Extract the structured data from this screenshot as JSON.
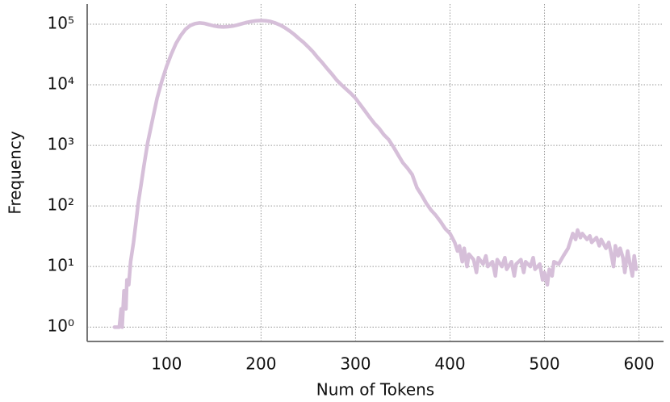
{
  "chart_data": {
    "type": "line",
    "xlabel": "Num of Tokens",
    "ylabel": "Frequency",
    "xlim": [
      16,
      626
    ],
    "ylim": [
      0.58,
      215000
    ],
    "log_y": true,
    "grid": true,
    "xticks": [
      100,
      200,
      300,
      400,
      500,
      600
    ],
    "yticks": [
      {
        "value": 1,
        "label": "10⁰"
      },
      {
        "value": 10,
        "label": "10¹"
      },
      {
        "value": 100,
        "label": "10²"
      },
      {
        "value": 1000,
        "label": "10³"
      },
      {
        "value": 10000,
        "label": "10⁴"
      },
      {
        "value": 100000,
        "label": "10⁵"
      }
    ],
    "series": [
      {
        "color": "#d6bfd9",
        "x": [
          45,
          48,
          50,
          52,
          53,
          55,
          57,
          58,
          60,
          62,
          65,
          68,
          70,
          73,
          76,
          80,
          85,
          90,
          95,
          100,
          105,
          110,
          115,
          120,
          125,
          130,
          135,
          140,
          145,
          150,
          155,
          160,
          165,
          170,
          175,
          180,
          185,
          190,
          195,
          200,
          205,
          210,
          215,
          220,
          225,
          230,
          235,
          240,
          245,
          250,
          255,
          260,
          265,
          270,
          275,
          280,
          285,
          290,
          295,
          300,
          305,
          310,
          315,
          320,
          325,
          330,
          335,
          340,
          345,
          350,
          355,
          360,
          365,
          370,
          375,
          380,
          385,
          390,
          395,
          400,
          405,
          408,
          410,
          413,
          415,
          418,
          420,
          425,
          428,
          430,
          435,
          438,
          440,
          445,
          448,
          450,
          455,
          458,
          460,
          465,
          468,
          470,
          475,
          478,
          480,
          485,
          488,
          490,
          495,
          498,
          500,
          503,
          505,
          508,
          510,
          515,
          520,
          525,
          530,
          533,
          535,
          538,
          540,
          545,
          548,
          550,
          555,
          558,
          560,
          565,
          568,
          570,
          573,
          575,
          578,
          580,
          583,
          585,
          588,
          590,
          593,
          595,
          597
        ],
        "values": [
          1,
          1,
          1,
          2,
          1,
          4,
          2,
          6,
          5,
          12,
          25,
          60,
          110,
          220,
          450,
          1100,
          2600,
          6000,
          11500,
          20000,
          32000,
          48000,
          65000,
          82000,
          95000,
          102000,
          105000,
          103000,
          98000,
          94000,
          91000,
          90000,
          91000,
          93000,
          97000,
          102000,
          107000,
          111000,
          114000,
          115000,
          114000,
          111000,
          105000,
          97000,
          88000,
          78000,
          68000,
          58000,
          50000,
          42000,
          35000,
          28000,
          23000,
          18500,
          15000,
          12000,
          10000,
          8500,
          7200,
          6000,
          4700,
          3700,
          2900,
          2300,
          1900,
          1500,
          1250,
          950,
          700,
          520,
          420,
          330,
          200,
          150,
          110,
          85,
          70,
          55,
          42,
          35,
          25,
          18,
          22,
          12,
          20,
          10,
          16,
          13,
          8,
          14,
          11,
          15,
          10,
          12,
          7,
          13,
          10,
          14,
          9,
          12,
          7,
          11,
          13,
          8,
          12,
          10,
          14,
          9,
          11,
          6,
          8,
          5,
          9,
          7,
          12,
          11,
          15,
          20,
          35,
          28,
          40,
          30,
          35,
          28,
          32,
          25,
          30,
          22,
          28,
          20,
          25,
          18,
          10,
          22,
          15,
          20,
          14,
          8,
          18,
          12,
          7,
          15,
          9
        ]
      }
    ]
  }
}
